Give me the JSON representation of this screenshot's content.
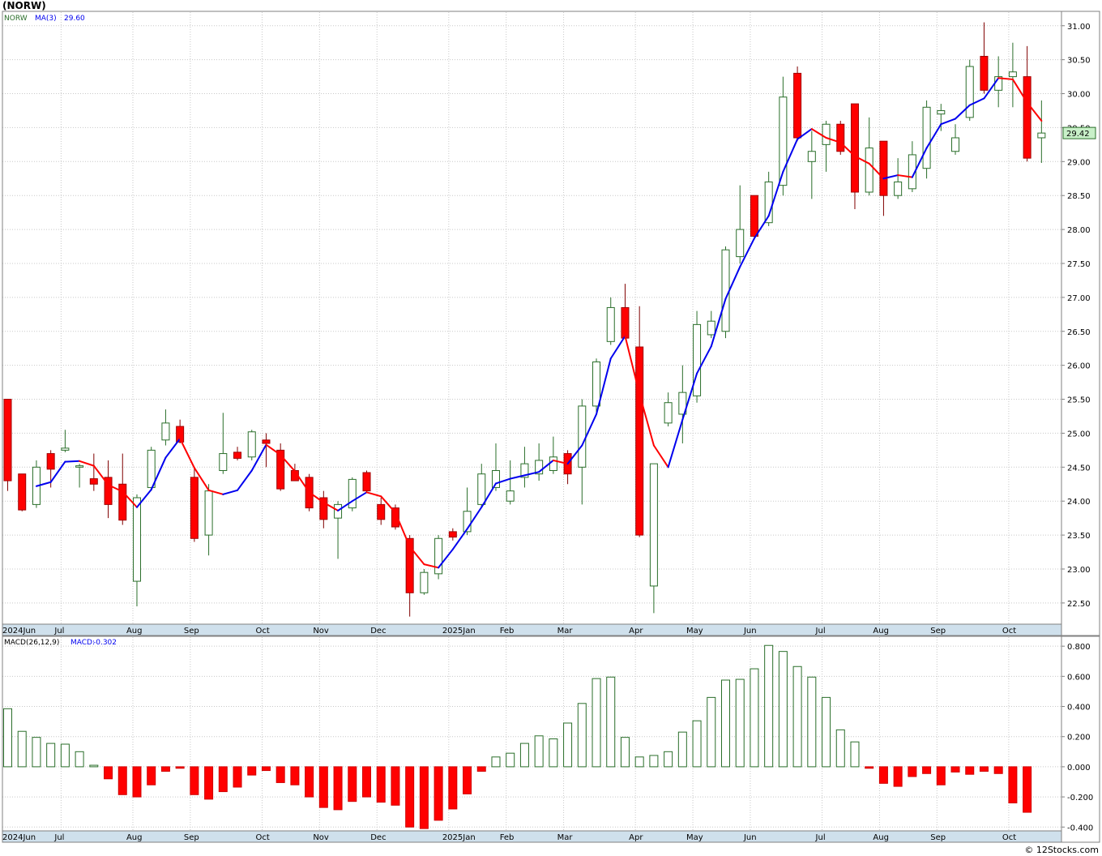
{
  "title": "(NORW)",
  "credit": "© 12Stocks.com",
  "colors": {
    "up": "#2a6e2a",
    "down": "#ff0000",
    "ma_up": "#0000ee",
    "ma_down": "#ff0000",
    "grid": "#c8c8c8",
    "axis_band": "#cfe0ec",
    "last_price_box": "#c8f0c8"
  },
  "chart_data": [
    {
      "type": "candlestick",
      "interval": "weekly",
      "series_label": "NORW",
      "ma_label": "MA(3)",
      "ma_value": "29.60",
      "last_price": "29.42",
      "ylim": [
        22.2,
        31.2
      ],
      "y_ticks": [
        "22.50",
        "23.00",
        "23.50",
        "24.00",
        "24.50",
        "25.00",
        "25.50",
        "26.00",
        "26.50",
        "27.00",
        "27.50",
        "28.00",
        "28.50",
        "29.00",
        "29.50",
        "30.00",
        "30.50",
        "31.00"
      ],
      "x_labels": [
        {
          "label": "2024Jun",
          "week": 0
        },
        {
          "label": "Jul",
          "week": 4
        },
        {
          "label": "Aug",
          "week": 9
        },
        {
          "label": "Sep",
          "week": 13
        },
        {
          "label": "Oct",
          "week": 18
        },
        {
          "label": "Nov",
          "week": 22
        },
        {
          "label": "Dec",
          "week": 26
        },
        {
          "label": "2025Jan",
          "week": 31
        },
        {
          "label": "Feb",
          "week": 35
        },
        {
          "label": "Mar",
          "week": 39
        },
        {
          "label": "Apr",
          "week": 44
        },
        {
          "label": "May",
          "week": 48
        },
        {
          "label": "Jun",
          "week": 52
        },
        {
          "label": "Jul",
          "week": 57
        },
        {
          "label": "Aug",
          "week": 61
        },
        {
          "label": "Sep",
          "week": 65
        },
        {
          "label": "Oct",
          "week": 70
        }
      ],
      "candles": [
        [
          25.5,
          25.5,
          24.15,
          24.3
        ],
        [
          24.4,
          24.4,
          23.85,
          23.87
        ],
        [
          23.95,
          24.6,
          23.9,
          24.5
        ],
        [
          24.7,
          24.75,
          24.2,
          24.47
        ],
        [
          24.75,
          25.05,
          24.72,
          24.78
        ],
        [
          24.5,
          24.55,
          24.2,
          24.52
        ],
        [
          24.33,
          24.7,
          24.15,
          24.25
        ],
        [
          24.35,
          24.6,
          23.75,
          23.95
        ],
        [
          24.25,
          24.7,
          23.65,
          23.72
        ],
        [
          22.82,
          24.1,
          22.45,
          24.05
        ],
        [
          24.2,
          24.8,
          24.15,
          24.75
        ],
        [
          24.9,
          25.35,
          24.82,
          25.15
        ],
        [
          25.1,
          25.2,
          24.85,
          24.87
        ],
        [
          24.35,
          24.5,
          23.4,
          23.45
        ],
        [
          23.5,
          24.25,
          23.2,
          24.15
        ],
        [
          24.45,
          25.3,
          24.4,
          24.7
        ],
        [
          24.72,
          24.8,
          24.6,
          24.63
        ],
        [
          24.65,
          25.05,
          24.6,
          25.02
        ],
        [
          24.9,
          25.0,
          24.5,
          24.85
        ],
        [
          24.75,
          24.85,
          24.15,
          24.18
        ],
        [
          24.45,
          24.55,
          24.3,
          24.3
        ],
        [
          24.35,
          24.4,
          23.85,
          23.9
        ],
        [
          24.05,
          24.15,
          23.6,
          23.73
        ],
        [
          23.75,
          24.0,
          23.15,
          23.95
        ],
        [
          23.9,
          24.35,
          23.85,
          24.32
        ],
        [
          24.42,
          24.45,
          24.12,
          24.15
        ],
        [
          23.95,
          24.05,
          23.65,
          23.73
        ],
        [
          23.9,
          23.95,
          23.58,
          23.62
        ],
        [
          23.45,
          23.5,
          22.3,
          22.65
        ],
        [
          22.65,
          23.0,
          22.62,
          22.95
        ],
        [
          22.93,
          23.5,
          22.85,
          23.45
        ],
        [
          23.55,
          23.6,
          23.42,
          23.47
        ],
        [
          23.55,
          24.2,
          23.5,
          23.85
        ],
        [
          23.95,
          24.55,
          23.9,
          24.4
        ],
        [
          24.2,
          24.85,
          24.15,
          24.45
        ],
        [
          24.0,
          24.6,
          23.95,
          24.15
        ],
        [
          24.35,
          24.8,
          24.2,
          24.55
        ],
        [
          24.4,
          24.85,
          24.3,
          24.6
        ],
        [
          24.45,
          24.95,
          24.4,
          24.65
        ],
        [
          24.7,
          24.75,
          24.25,
          24.4
        ],
        [
          24.5,
          25.5,
          23.95,
          25.4
        ],
        [
          25.4,
          26.1,
          25.3,
          26.05
        ],
        [
          26.35,
          27.0,
          26.3,
          26.85
        ],
        [
          26.85,
          27.2,
          26.4,
          26.4
        ],
        [
          26.27,
          26.87,
          23.47,
          23.5
        ],
        [
          22.75,
          24.55,
          22.35,
          24.55
        ],
        [
          25.15,
          25.6,
          25.1,
          25.45
        ],
        [
          25.28,
          26.0,
          24.85,
          25.6
        ],
        [
          25.55,
          26.8,
          25.45,
          26.6
        ],
        [
          26.45,
          26.8,
          26.4,
          26.65
        ],
        [
          26.5,
          27.75,
          26.4,
          27.7
        ],
        [
          27.6,
          28.65,
          27.5,
          28.0
        ],
        [
          28.5,
          28.5,
          27.85,
          27.9
        ],
        [
          28.1,
          28.85,
          28.05,
          28.7
        ],
        [
          28.65,
          30.25,
          28.5,
          29.95
        ],
        [
          30.3,
          30.4,
          29.3,
          29.35
        ],
        [
          29.0,
          29.45,
          28.45,
          29.15
        ],
        [
          29.25,
          29.6,
          28.85,
          29.55
        ],
        [
          29.55,
          29.6,
          29.1,
          29.15
        ],
        [
          29.85,
          29.85,
          28.3,
          28.55
        ],
        [
          28.55,
          29.65,
          28.5,
          29.2
        ],
        [
          29.3,
          29.3,
          28.2,
          28.5
        ],
        [
          28.5,
          29.05,
          28.45,
          28.7
        ],
        [
          28.6,
          29.3,
          28.55,
          29.1
        ],
        [
          28.9,
          29.9,
          28.75,
          29.8
        ],
        [
          29.7,
          29.85,
          29.45,
          29.75
        ],
        [
          29.15,
          29.55,
          29.1,
          29.35
        ],
        [
          29.65,
          30.5,
          29.6,
          30.4
        ],
        [
          30.55,
          31.05,
          30.0,
          30.05
        ],
        [
          30.05,
          30.55,
          29.8,
          30.25
        ],
        [
          30.25,
          30.75,
          29.8,
          30.32
        ],
        [
          30.25,
          30.7,
          29.0,
          29.05
        ],
        [
          29.35,
          29.9,
          28.98,
          29.42
        ]
      ],
      "ma3": [
        null,
        null,
        24.22,
        24.28,
        24.58,
        24.59,
        24.52,
        24.24,
        24.14,
        23.91,
        24.17,
        24.64,
        24.92,
        24.49,
        24.16,
        24.1,
        24.16,
        24.45,
        24.83,
        24.68,
        24.44,
        24.13,
        23.98,
        23.86,
        24.0,
        24.13,
        24.07,
        23.83,
        23.33,
        23.07,
        23.02,
        23.29,
        23.59,
        23.91,
        24.26,
        24.33,
        24.38,
        24.43,
        24.6,
        24.55,
        24.82,
        25.28,
        26.1,
        26.43,
        25.58,
        24.82,
        24.5,
        25.2,
        25.88,
        26.28,
        26.98,
        27.45,
        27.87,
        28.2,
        28.85,
        29.33,
        29.48,
        29.35,
        29.28,
        29.08,
        28.97,
        28.75,
        28.8,
        28.77,
        29.2,
        29.55,
        29.63,
        29.83,
        29.93,
        30.23,
        30.21,
        29.87,
        29.6
      ]
    },
    {
      "type": "bar",
      "series_label": "MACD(26,12,9)",
      "macd_label": "MACD:",
      "macd_value": "-0.302",
      "ylim": [
        -0.42,
        0.86
      ],
      "y_ticks": [
        "-0.400",
        "-0.200",
        "0.000",
        "0.200",
        "0.400",
        "0.600",
        "0.800"
      ],
      "values": [
        0.385,
        0.235,
        0.195,
        0.155,
        0.15,
        0.1,
        0.01,
        -0.08,
        -0.185,
        -0.2,
        -0.12,
        -0.03,
        -0.01,
        -0.185,
        -0.215,
        -0.165,
        -0.135,
        -0.055,
        -0.025,
        -0.105,
        -0.12,
        -0.2,
        -0.27,
        -0.285,
        -0.23,
        -0.2,
        -0.235,
        -0.255,
        -0.4,
        -0.41,
        -0.355,
        -0.28,
        -0.18,
        -0.03,
        0.065,
        0.09,
        0.155,
        0.205,
        0.185,
        0.29,
        0.42,
        0.585,
        0.595,
        0.195,
        0.065,
        0.075,
        0.1,
        0.23,
        0.305,
        0.46,
        0.575,
        0.58,
        0.65,
        0.805,
        0.765,
        0.665,
        0.595,
        0.46,
        0.245,
        0.165,
        -0.01,
        -0.11,
        -0.13,
        -0.065,
        -0.045,
        -0.12,
        -0.035,
        -0.05,
        -0.03,
        -0.045,
        -0.24,
        -0.302
      ]
    }
  ]
}
